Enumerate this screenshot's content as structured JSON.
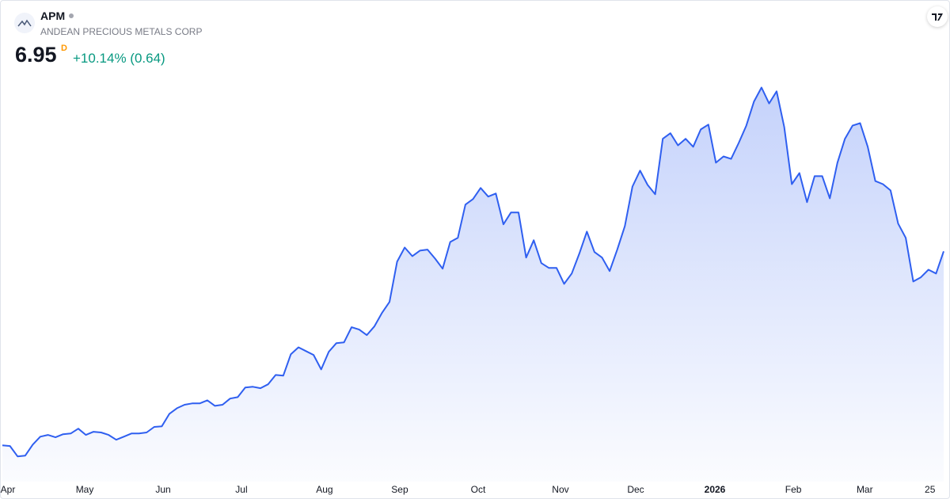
{
  "header": {
    "symbol": "APM",
    "name": "ANDEAN PRECIOUS METALS CORP",
    "price": "6.95",
    "interval": "D",
    "change": "+10.14% (0.64)"
  },
  "chart_data": {
    "type": "area",
    "color": "#2f5ff0",
    "values": [
      1.35,
      1.33,
      1.03,
      1.05,
      1.37,
      1.6,
      1.65,
      1.58,
      1.67,
      1.69,
      1.83,
      1.65,
      1.74,
      1.72,
      1.65,
      1.51,
      1.6,
      1.69,
      1.69,
      1.72,
      1.88,
      1.9,
      2.26,
      2.42,
      2.52,
      2.56,
      2.56,
      2.65,
      2.49,
      2.52,
      2.7,
      2.74,
      3.02,
      3.04,
      3.0,
      3.11,
      3.38,
      3.36,
      3.98,
      4.18,
      4.07,
      3.96,
      3.54,
      4.05,
      4.3,
      4.32,
      4.76,
      4.69,
      4.53,
      4.78,
      5.17,
      5.49,
      6.65,
      7.06,
      6.81,
      6.97,
      7.0,
      6.74,
      6.45,
      7.22,
      7.34,
      8.3,
      8.46,
      8.78,
      8.53,
      8.62,
      7.73,
      8.07,
      8.07,
      6.77,
      7.27,
      6.61,
      6.47,
      6.47,
      6.01,
      6.31,
      6.88,
      7.52,
      6.93,
      6.77,
      6.38,
      7.0,
      7.68,
      8.82,
      9.28,
      8.87,
      8.6,
      10.2,
      10.36,
      10.01,
      10.2,
      9.97,
      10.47,
      10.61,
      9.51,
      9.69,
      9.62,
      10.08,
      10.58,
      11.27,
      11.68,
      11.22,
      11.57,
      10.54,
      8.89,
      9.21,
      8.37,
      9.12,
      9.12,
      8.48,
      9.51,
      10.2,
      10.58,
      10.65,
      9.97,
      8.98,
      8.89,
      8.71,
      7.75,
      7.34,
      6.08,
      6.2,
      6.42,
      6.31,
      6.95
    ],
    "xlim": [
      0,
      124
    ],
    "ylim": [
      0.6,
      12.4
    ],
    "xticks": [
      {
        "value": 0.73,
        "label": "Apr"
      },
      {
        "value": 10.85,
        "label": "May"
      },
      {
        "value": 21.17,
        "label": "Jun"
      },
      {
        "value": 31.49,
        "label": "Jul"
      },
      {
        "value": 42.44,
        "label": "Aug"
      },
      {
        "value": 52.35,
        "label": "Sep"
      },
      {
        "value": 62.68,
        "label": "Oct"
      },
      {
        "value": 73.52,
        "label": "Nov"
      },
      {
        "value": 83.43,
        "label": "Dec"
      },
      {
        "value": 93.86,
        "label": "2026"
      },
      {
        "value": 104.2,
        "label": "Feb"
      },
      {
        "value": 113.6,
        "label": "Mar"
      },
      {
        "value": 122.2,
        "label": "25"
      }
    ]
  }
}
